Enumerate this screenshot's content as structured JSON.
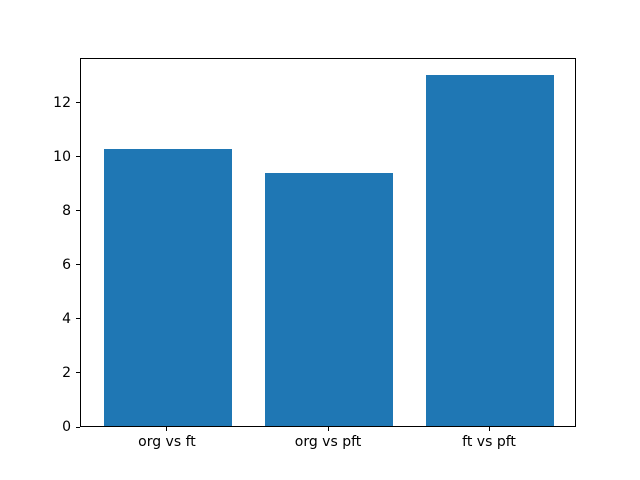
{
  "chart_data": {
    "type": "bar",
    "categories": [
      "org vs ft",
      "org vs pft",
      "ft vs pft"
    ],
    "values": [
      10.25,
      9.35,
      13.0
    ],
    "x": [
      0,
      1,
      2
    ],
    "title": "",
    "xlabel": "",
    "ylabel": "",
    "xlim": [
      -0.54,
      2.54
    ],
    "ylim": [
      0,
      13.65
    ],
    "yticks": [
      0,
      2,
      4,
      6,
      8,
      10,
      12
    ],
    "bar_color": "#1f77b4",
    "bar_width": 0.8,
    "grid": false,
    "legend": null,
    "background_color": "#ffffff",
    "axis_color": "#000000"
  }
}
